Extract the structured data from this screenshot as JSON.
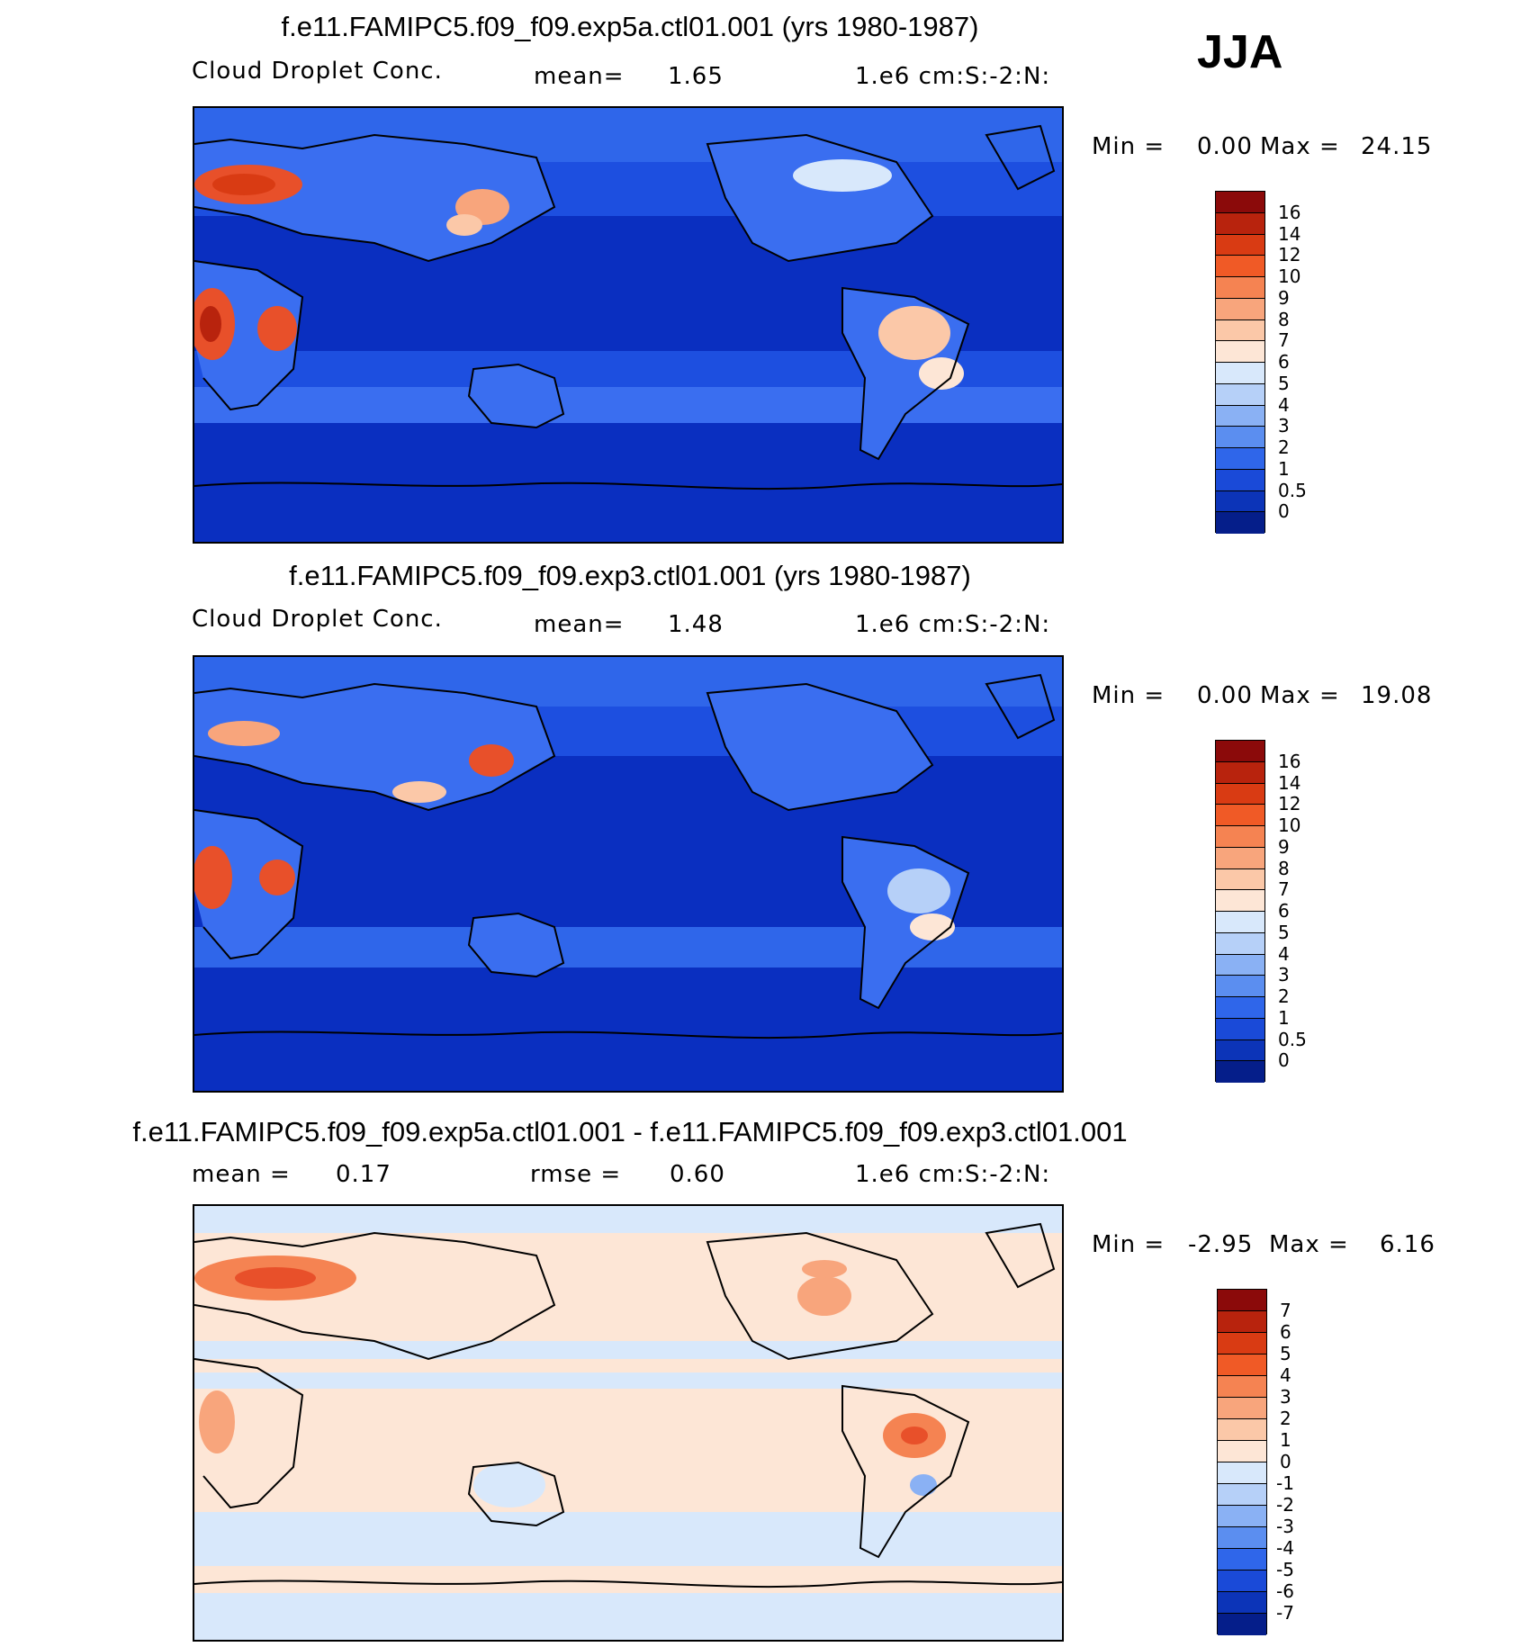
{
  "season": "JJA",
  "colors": {
    "ocean_deep": "#0a2fc0",
    "ocean_mid": "#1d4fe0",
    "land_blue": "#3a6ef0",
    "warm": "#e8502a",
    "diff_bg": "#fde6d6",
    "diff_blue": "#d6e8fb"
  },
  "panels": [
    {
      "title": "f.e11.FAMIPC5.f09_f09.exp5a.ctl01.001 (yrs 1980-1987)",
      "variable": "Cloud Droplet Conc.",
      "stat1_label": "mean=",
      "stat1_value": "1.65",
      "units": "1.e6 cm:S:-2:N:",
      "min_label": "Min =",
      "min_value": "0.00",
      "max_label": "Max =",
      "max_value": "24.15",
      "colorbar": {
        "labels": [
          "16",
          "14",
          "12",
          "10",
          "9",
          "8",
          "7",
          "6",
          "5",
          "4",
          "3",
          "2",
          "1",
          "0.5",
          "0"
        ],
        "colors": [
          "#8b0a0a",
          "#b8230d",
          "#d93b13",
          "#f05a26",
          "#f58352",
          "#f8a57c",
          "#fbc8a8",
          "#fde6d6",
          "#d8e8fb",
          "#b6d0f8",
          "#8ab1f4",
          "#5b8ef0",
          "#2f66ea",
          "#1a4ad8",
          "#0c34b8",
          "#051e8a"
        ]
      }
    },
    {
      "title": "f.e11.FAMIPC5.f09_f09.exp3.ctl01.001 (yrs 1980-1987)",
      "variable": "Cloud Droplet Conc.",
      "stat1_label": "mean=",
      "stat1_value": "1.48",
      "units": "1.e6 cm:S:-2:N:",
      "min_label": "Min =",
      "min_value": "0.00",
      "max_label": "Max =",
      "max_value": "19.08",
      "colorbar": {
        "labels": [
          "16",
          "14",
          "12",
          "10",
          "9",
          "8",
          "7",
          "6",
          "5",
          "4",
          "3",
          "2",
          "1",
          "0.5",
          "0"
        ],
        "colors": [
          "#8b0a0a",
          "#b8230d",
          "#d93b13",
          "#f05a26",
          "#f58352",
          "#f8a57c",
          "#fbc8a8",
          "#fde6d6",
          "#d8e8fb",
          "#b6d0f8",
          "#8ab1f4",
          "#5b8ef0",
          "#2f66ea",
          "#1a4ad8",
          "#0c34b8",
          "#051e8a"
        ]
      }
    },
    {
      "title": "f.e11.FAMIPC5.f09_f09.exp5a.ctl01.001 - f.e11.FAMIPC5.f09_f09.exp3.ctl01.001",
      "stat1_label": "mean =",
      "stat1_value": "0.17",
      "stat2_label": "rmse =",
      "stat2_value": "0.60",
      "units": "1.e6 cm:S:-2:N:",
      "min_label": "Min =",
      "min_value": "-2.95",
      "max_label": "Max =",
      "max_value": "6.16",
      "colorbar": {
        "labels": [
          "7",
          "6",
          "5",
          "4",
          "3",
          "2",
          "1",
          "0",
          "-1",
          "-2",
          "-3",
          "-4",
          "-5",
          "-6",
          "-7"
        ],
        "colors": [
          "#8b0a0a",
          "#b8230d",
          "#d93b13",
          "#f05a26",
          "#f58352",
          "#f8a57c",
          "#fbc8a8",
          "#fde6d6",
          "#d8e8fb",
          "#b6d0f8",
          "#8ab1f4",
          "#5b8ef0",
          "#2f66ea",
          "#1a4ad8",
          "#0c34b8",
          "#051e8a"
        ]
      }
    }
  ]
}
